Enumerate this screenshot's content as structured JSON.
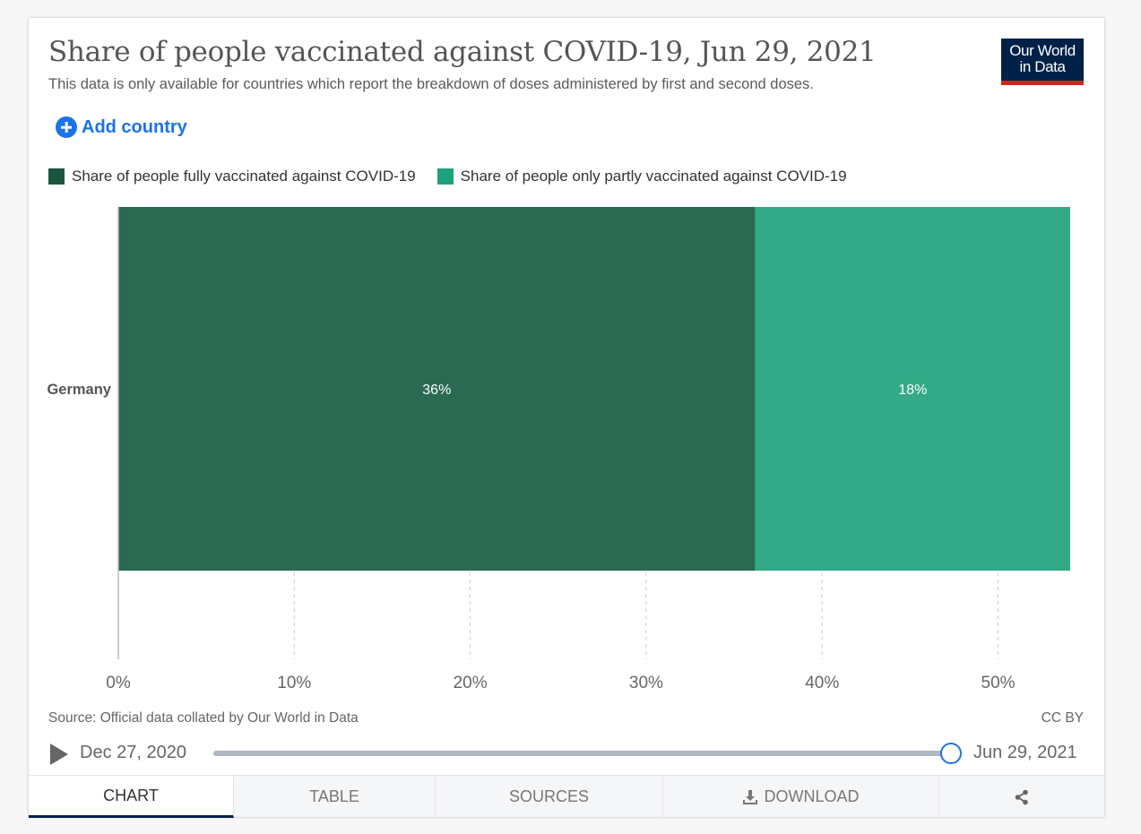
{
  "header": {
    "title": "Share of people vaccinated against COVID-19, Jun 29, 2021",
    "subtitle": "This data is only available for countries which report the breakdown of doses administered by first and second doses.",
    "logo_line1": "Our World",
    "logo_line2": "in Data"
  },
  "controls": {
    "add_country_label": "Add country"
  },
  "colors": {
    "fully": "#2a6a52",
    "partly": "#33aa87",
    "legend_fully": "#1a5540",
    "legend_partly": "#1da37b",
    "accent": "#1a73e8",
    "brand": "#002147"
  },
  "chart_data": {
    "type": "bar",
    "orientation": "horizontal",
    "stacked": true,
    "categories": [
      "Germany"
    ],
    "series": [
      {
        "name": "Share of people fully vaccinated against COVID-19",
        "values": [
          36.2
        ],
        "label": "36%"
      },
      {
        "name": "Share of people only partly vaccinated against COVID-19",
        "values": [
          17.9
        ],
        "label": "18%"
      }
    ],
    "xlim": [
      0,
      54.1
    ],
    "xticks": [
      0,
      10,
      20,
      30,
      40,
      50
    ],
    "xtick_labels": [
      "0%",
      "10%",
      "20%",
      "30%",
      "40%",
      "50%"
    ],
    "grid": "vertical dashed",
    "legend_position": "top-left"
  },
  "footer": {
    "source": "Source: Official data collated by Our World in Data",
    "license": "CC BY"
  },
  "timeline": {
    "start_label": "Dec 27, 2020",
    "end_label": "Jun 29, 2021",
    "position_fraction": 1.0
  },
  "tabs": [
    {
      "label": "CHART",
      "active": true
    },
    {
      "label": "TABLE",
      "active": false
    },
    {
      "label": "SOURCES",
      "active": false
    },
    {
      "label": "DOWNLOAD",
      "active": false
    },
    {
      "label": "",
      "active": false
    }
  ]
}
